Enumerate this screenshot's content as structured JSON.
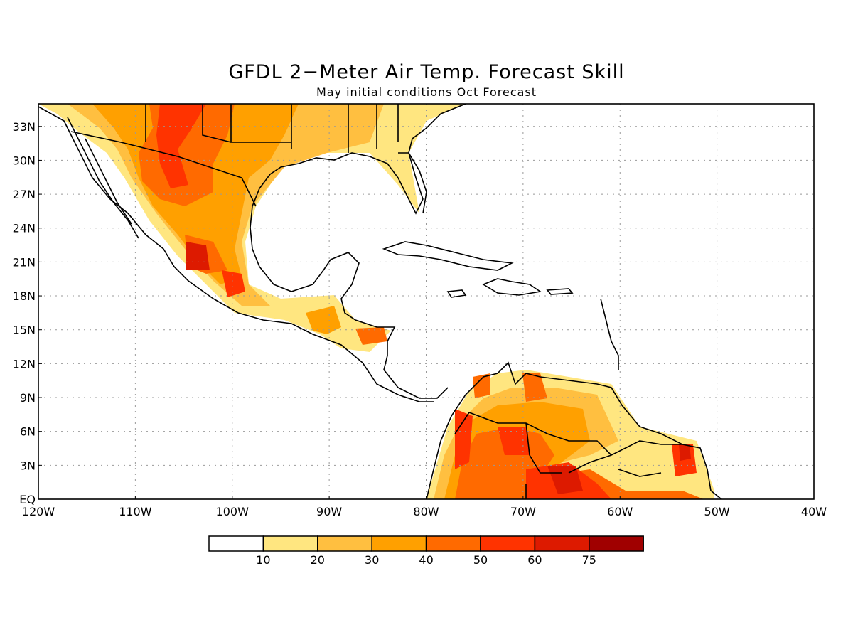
{
  "title": "GFDL 2−Meter Air Temp. Forecast Skill",
  "subtitle": "May initial conditions  Oct Forecast",
  "map": {
    "lat_ticks": [
      "33N",
      "30N",
      "27N",
      "24N",
      "21N",
      "18N",
      "15N",
      "12N",
      "9N",
      "6N",
      "3N",
      "EQ"
    ],
    "lon_ticks": [
      "120W",
      "110W",
      "100W",
      "90W",
      "80W",
      "70W",
      "60W",
      "50W",
      "40W"
    ]
  },
  "colorbar": {
    "labels": [
      "10",
      "20",
      "30",
      "40",
      "50",
      "60",
      "75"
    ],
    "colors": [
      "#ffffff",
      "#ffe680",
      "#ffbf40",
      "#ffa000",
      "#ff6a00",
      "#ff3300",
      "#dd1a00",
      "#a00000"
    ]
  },
  "chart_data": {
    "type": "heatmap",
    "title": "GFDL 2−Meter Air Temp. Forecast Skill",
    "subtitle": "May initial conditions  Oct Forecast",
    "xlim": [
      -120,
      -40
    ],
    "ylim": [
      0,
      35
    ],
    "legend_levels": [
      10,
      20,
      30,
      40,
      50,
      60,
      75
    ],
    "legend_colors": [
      "#ffffff",
      "#ffe680",
      "#ffbf40",
      "#ffa000",
      "#ff6a00",
      "#ff3300",
      "#dd1a00",
      "#a00000"
    ],
    "grid": true
  }
}
